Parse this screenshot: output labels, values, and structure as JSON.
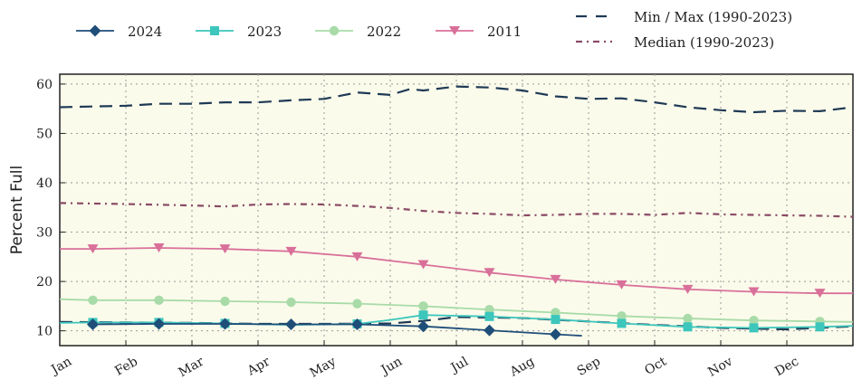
{
  "chart_data": {
    "type": "line",
    "title": "",
    "xlabel": "",
    "ylabel": "Percent Full",
    "ylim": [
      7,
      62
    ],
    "yticks": [
      "10",
      "20",
      "30",
      "40",
      "50",
      "60"
    ],
    "grid": true,
    "background": "#fbfbeb",
    "months": [
      "Jan",
      "Feb",
      "Mar",
      "Apr",
      "May",
      "Jun",
      "Jul",
      "Aug",
      "Sep",
      "Oct",
      "Nov",
      "Dec"
    ],
    "legend_position": "top",
    "series": [
      {
        "name": "2024",
        "color": "#1f4e79",
        "marker": "diamond",
        "style": "solid",
        "points": [
          [
            0.5,
            11.3
          ],
          [
            1.5,
            11.4
          ],
          [
            2.5,
            11.4
          ],
          [
            3.5,
            11.3
          ],
          [
            4.5,
            11.3
          ],
          [
            5.5,
            10.9
          ],
          [
            6.5,
            10.1
          ],
          [
            7.5,
            9.3
          ],
          [
            7.9,
            9.0
          ]
        ],
        "markers": [
          [
            0.5,
            11.3
          ],
          [
            1.5,
            11.4
          ],
          [
            2.5,
            11.4
          ],
          [
            3.5,
            11.3
          ],
          [
            4.5,
            11.3
          ],
          [
            5.5,
            10.9
          ],
          [
            6.5,
            10.1
          ],
          [
            7.5,
            9.3
          ]
        ]
      },
      {
        "name": "2023",
        "color": "#3cc6bc",
        "marker": "square",
        "style": "solid",
        "points": [
          [
            0,
            11.6
          ],
          [
            0.5,
            11.7
          ],
          [
            1.5,
            11.7
          ],
          [
            2.5,
            11.5
          ],
          [
            3.5,
            11.2
          ],
          [
            4.5,
            11.4
          ],
          [
            5.0,
            12.2
          ],
          [
            5.5,
            13.2
          ],
          [
            6.5,
            12.9
          ],
          [
            7.5,
            12.3
          ],
          [
            8.5,
            11.5
          ],
          [
            9.5,
            10.8
          ],
          [
            10.5,
            10.6
          ],
          [
            11.5,
            10.8
          ],
          [
            12,
            11.0
          ]
        ],
        "markers": [
          [
            0.5,
            11.7
          ],
          [
            1.5,
            11.7
          ],
          [
            2.5,
            11.5
          ],
          [
            4.5,
            11.4
          ],
          [
            5.5,
            13.2
          ],
          [
            6.5,
            12.9
          ],
          [
            7.5,
            12.3
          ],
          [
            8.5,
            11.5
          ],
          [
            9.5,
            10.8
          ],
          [
            10.5,
            10.6
          ],
          [
            11.5,
            10.8
          ]
        ]
      },
      {
        "name": "2022",
        "color": "#a8dba8",
        "marker": "circle",
        "style": "solid",
        "points": [
          [
            0,
            16.4
          ],
          [
            0.5,
            16.2
          ],
          [
            1.5,
            16.2
          ],
          [
            2.5,
            16.0
          ],
          [
            3.5,
            15.8
          ],
          [
            4.5,
            15.5
          ],
          [
            5.5,
            15.0
          ],
          [
            6.5,
            14.3
          ],
          [
            7.5,
            13.7
          ],
          [
            8.5,
            13.0
          ],
          [
            9.5,
            12.5
          ],
          [
            10.5,
            12.1
          ],
          [
            11.5,
            11.9
          ],
          [
            12,
            11.8
          ]
        ],
        "markers": [
          [
            0.5,
            16.2
          ],
          [
            1.5,
            16.2
          ],
          [
            2.5,
            16.0
          ],
          [
            3.5,
            15.8
          ],
          [
            4.5,
            15.5
          ],
          [
            5.5,
            15.0
          ],
          [
            6.5,
            14.3
          ],
          [
            7.5,
            13.7
          ],
          [
            8.5,
            13.0
          ],
          [
            9.5,
            12.5
          ],
          [
            10.5,
            12.1
          ],
          [
            11.5,
            11.9
          ]
        ]
      },
      {
        "name": "2011",
        "color": "#d9709a",
        "marker": "triangle-down",
        "style": "solid",
        "points": [
          [
            0,
            26.6
          ],
          [
            0.5,
            26.6
          ],
          [
            1.5,
            26.8
          ],
          [
            2.5,
            26.6
          ],
          [
            3.5,
            26.1
          ],
          [
            4.5,
            25.0
          ],
          [
            5.5,
            23.4
          ],
          [
            6.5,
            21.8
          ],
          [
            7.5,
            20.4
          ],
          [
            8.5,
            19.3
          ],
          [
            9.5,
            18.4
          ],
          [
            10.5,
            17.9
          ],
          [
            11.5,
            17.6
          ],
          [
            12,
            17.6
          ]
        ],
        "markers": [
          [
            0.5,
            26.6
          ],
          [
            1.5,
            26.8
          ],
          [
            2.5,
            26.6
          ],
          [
            3.5,
            26.1
          ],
          [
            4.5,
            25.0
          ],
          [
            5.5,
            23.4
          ],
          [
            6.5,
            21.8
          ],
          [
            7.5,
            20.4
          ],
          [
            8.5,
            19.3
          ],
          [
            9.5,
            18.4
          ],
          [
            10.5,
            17.9
          ],
          [
            11.5,
            17.6
          ]
        ]
      },
      {
        "name": "Min / Max (1990-2023)",
        "color": "#1f3a56",
        "style": "dashed",
        "lines": [
          [
            [
              0,
              55.3
            ],
            [
              1,
              55.6
            ],
            [
              1.5,
              56.0
            ],
            [
              2,
              56.0
            ],
            [
              2.5,
              56.3
            ],
            [
              3,
              56.3
            ],
            [
              3.5,
              56.7
            ],
            [
              4,
              57.0
            ],
            [
              4.5,
              58.3
            ],
            [
              5,
              57.8
            ],
            [
              5.3,
              59.0
            ],
            [
              5.5,
              58.7
            ],
            [
              6,
              59.5
            ],
            [
              6.5,
              59.3
            ],
            [
              7,
              58.7
            ],
            [
              7.5,
              57.5
            ],
            [
              8,
              57.0
            ],
            [
              8.5,
              57.1
            ],
            [
              9,
              56.3
            ],
            [
              9.5,
              55.3
            ],
            [
              10,
              54.7
            ],
            [
              10.5,
              54.3
            ],
            [
              11,
              54.6
            ],
            [
              11.5,
              54.5
            ],
            [
              12,
              55.3
            ]
          ],
          [
            [
              0,
              11.8
            ],
            [
              1,
              11.7
            ],
            [
              2,
              11.6
            ],
            [
              3,
              11.4
            ],
            [
              4,
              11.4
            ],
            [
              5,
              11.5
            ],
            [
              5.5,
              12.0
            ],
            [
              6,
              12.8
            ],
            [
              7,
              12.6
            ],
            [
              8,
              11.9
            ],
            [
              9,
              11.2
            ],
            [
              10,
              10.6
            ],
            [
              11,
              10.3
            ],
            [
              12,
              10.9
            ]
          ]
        ]
      },
      {
        "name": "Median (1990-2023)",
        "color": "#8a4a66",
        "style": "dashdot",
        "points": [
          [
            0,
            35.9
          ],
          [
            1,
            35.7
          ],
          [
            2,
            35.4
          ],
          [
            2.5,
            35.2
          ],
          [
            3,
            35.6
          ],
          [
            3.5,
            35.7
          ],
          [
            4,
            35.6
          ],
          [
            4.5,
            35.3
          ],
          [
            5,
            34.9
          ],
          [
            5.5,
            34.3
          ],
          [
            6,
            33.9
          ],
          [
            6.5,
            33.7
          ],
          [
            7,
            33.4
          ],
          [
            7.5,
            33.5
          ],
          [
            8,
            33.7
          ],
          [
            8.5,
            33.7
          ],
          [
            9,
            33.5
          ],
          [
            9.5,
            33.9
          ],
          [
            10,
            33.6
          ],
          [
            10.5,
            33.5
          ],
          [
            11,
            33.4
          ],
          [
            11.5,
            33.3
          ],
          [
            12,
            33.1
          ]
        ]
      }
    ]
  }
}
